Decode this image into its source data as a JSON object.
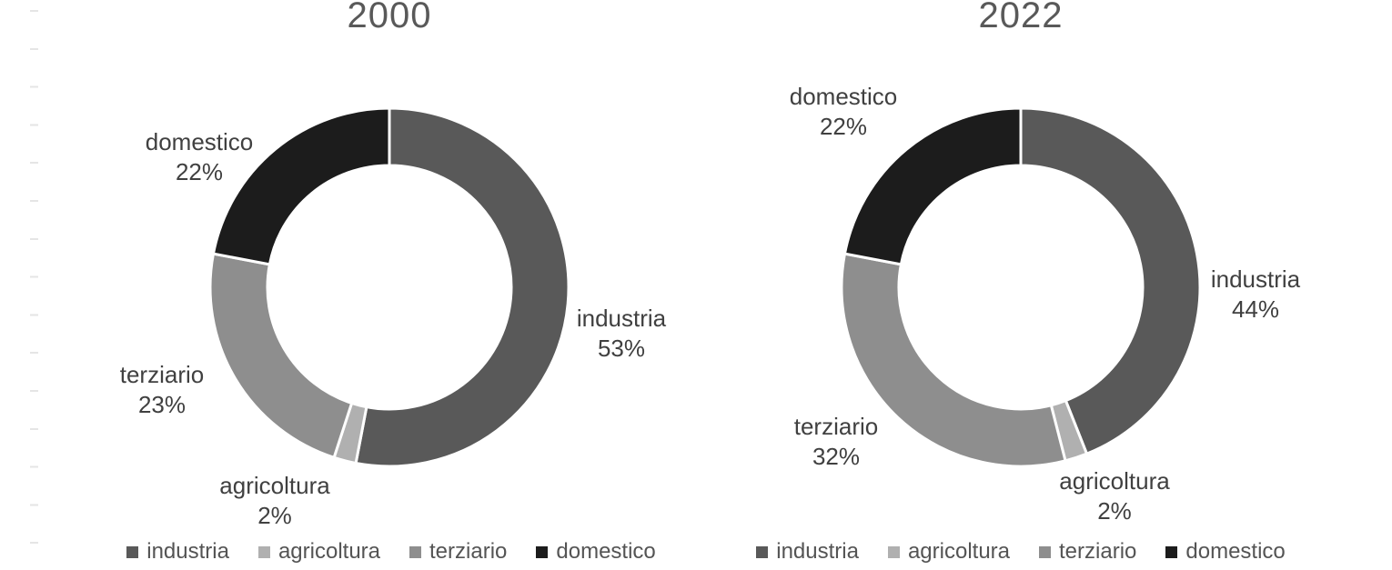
{
  "page": {
    "background": "#ffffff",
    "tick_remnant_color": "#DADADA"
  },
  "chart_data": [
    {
      "type": "pie",
      "subtype": "donut",
      "title": "2000",
      "categories": [
        "industria",
        "agricoltura",
        "terziario",
        "domestico"
      ],
      "values": [
        53,
        2,
        23,
        22
      ],
      "unit": "%",
      "colors": [
        "#595959",
        "#B0B0B0",
        "#8E8E8E",
        "#1C1C1C"
      ],
      "donut_hole_ratio": 0.68,
      "segment_gap_color": "#ffffff",
      "legend_position": "bottom",
      "callouts": [
        {
          "label": "industria",
          "value": "53%"
        },
        {
          "label": "agricoltura",
          "value": "2%"
        },
        {
          "label": "terziario",
          "value": "23%"
        },
        {
          "label": "domestico",
          "value": "22%"
        }
      ],
      "legend": [
        "industria",
        "agricoltura",
        "terziario",
        "domestico"
      ]
    },
    {
      "type": "pie",
      "subtype": "donut",
      "title": "2022",
      "categories": [
        "industria",
        "agricoltura",
        "terziario",
        "domestico"
      ],
      "values": [
        44,
        2,
        32,
        22
      ],
      "unit": "%",
      "colors": [
        "#595959",
        "#B0B0B0",
        "#8E8E8E",
        "#1C1C1C"
      ],
      "donut_hole_ratio": 0.68,
      "segment_gap_color": "#ffffff",
      "legend_position": "bottom",
      "callouts": [
        {
          "label": "industria",
          "value": "44%"
        },
        {
          "label": "agricoltura",
          "value": "2%"
        },
        {
          "label": "terziario",
          "value": "32%"
        },
        {
          "label": "domestico",
          "value": "22%"
        }
      ],
      "legend": [
        "industria",
        "agricoltura",
        "terziario",
        "domestico"
      ]
    }
  ]
}
